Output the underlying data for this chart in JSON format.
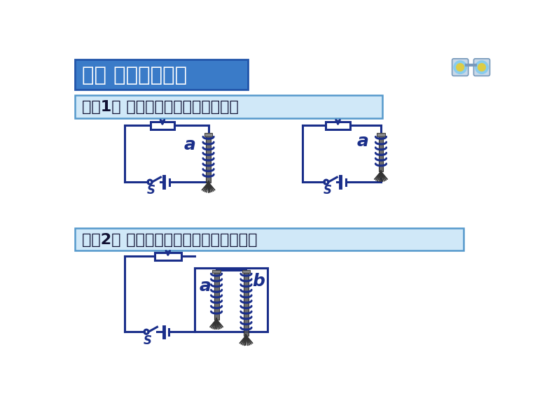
{
  "bg_color": "#ffffff",
  "title_box_color_top": "#4a90d9",
  "title_box_color_bot": "#2255aa",
  "title_text": "二、 电磁铁的磁性",
  "title_text_color": "#ffffff",
  "exp1_box_color": "#d0e8f8",
  "exp1_text": "实验1： 电磁铁的磁性与电流的关系",
  "exp2_box_color": "#d0e8f8",
  "exp2_text": "实验2： 电磁铁的磁性与线圈匹数的关系",
  "circuit_color": "#1a2e8a",
  "label_color": "#1a2e8a",
  "core_color": "#555555",
  "pin_color": "#333333"
}
